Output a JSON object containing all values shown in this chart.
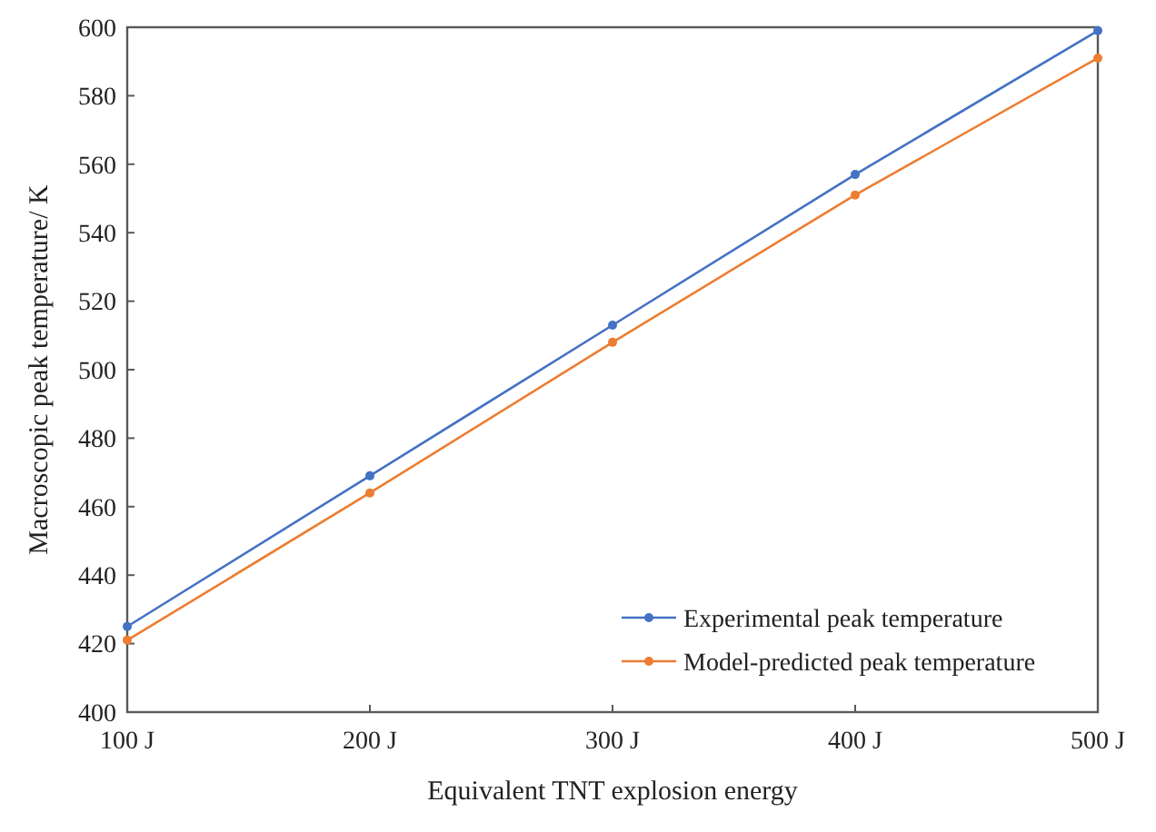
{
  "chart_data": {
    "type": "line",
    "xlabel": "Equivalent TNT explosion energy",
    "ylabel": "Macroscopic peak temperature/ K",
    "categories": [
      "100 J",
      "200 J",
      "300 J",
      "400 J",
      "500 J"
    ],
    "series": [
      {
        "name": "Experimental peak temperature",
        "color": "#4472c4",
        "values": [
          425,
          469,
          513,
          557,
          599
        ]
      },
      {
        "name": "Model-predicted peak temperature",
        "color": "#ed7d31",
        "values": [
          421,
          464,
          508,
          551,
          591
        ]
      }
    ],
    "ylim": [
      400,
      600
    ],
    "yticks": [
      400,
      420,
      440,
      460,
      480,
      500,
      520,
      540,
      560,
      580,
      600
    ],
    "grid": false,
    "legend": "bottom right",
    "marker": "circle",
    "line_style": "solid"
  }
}
